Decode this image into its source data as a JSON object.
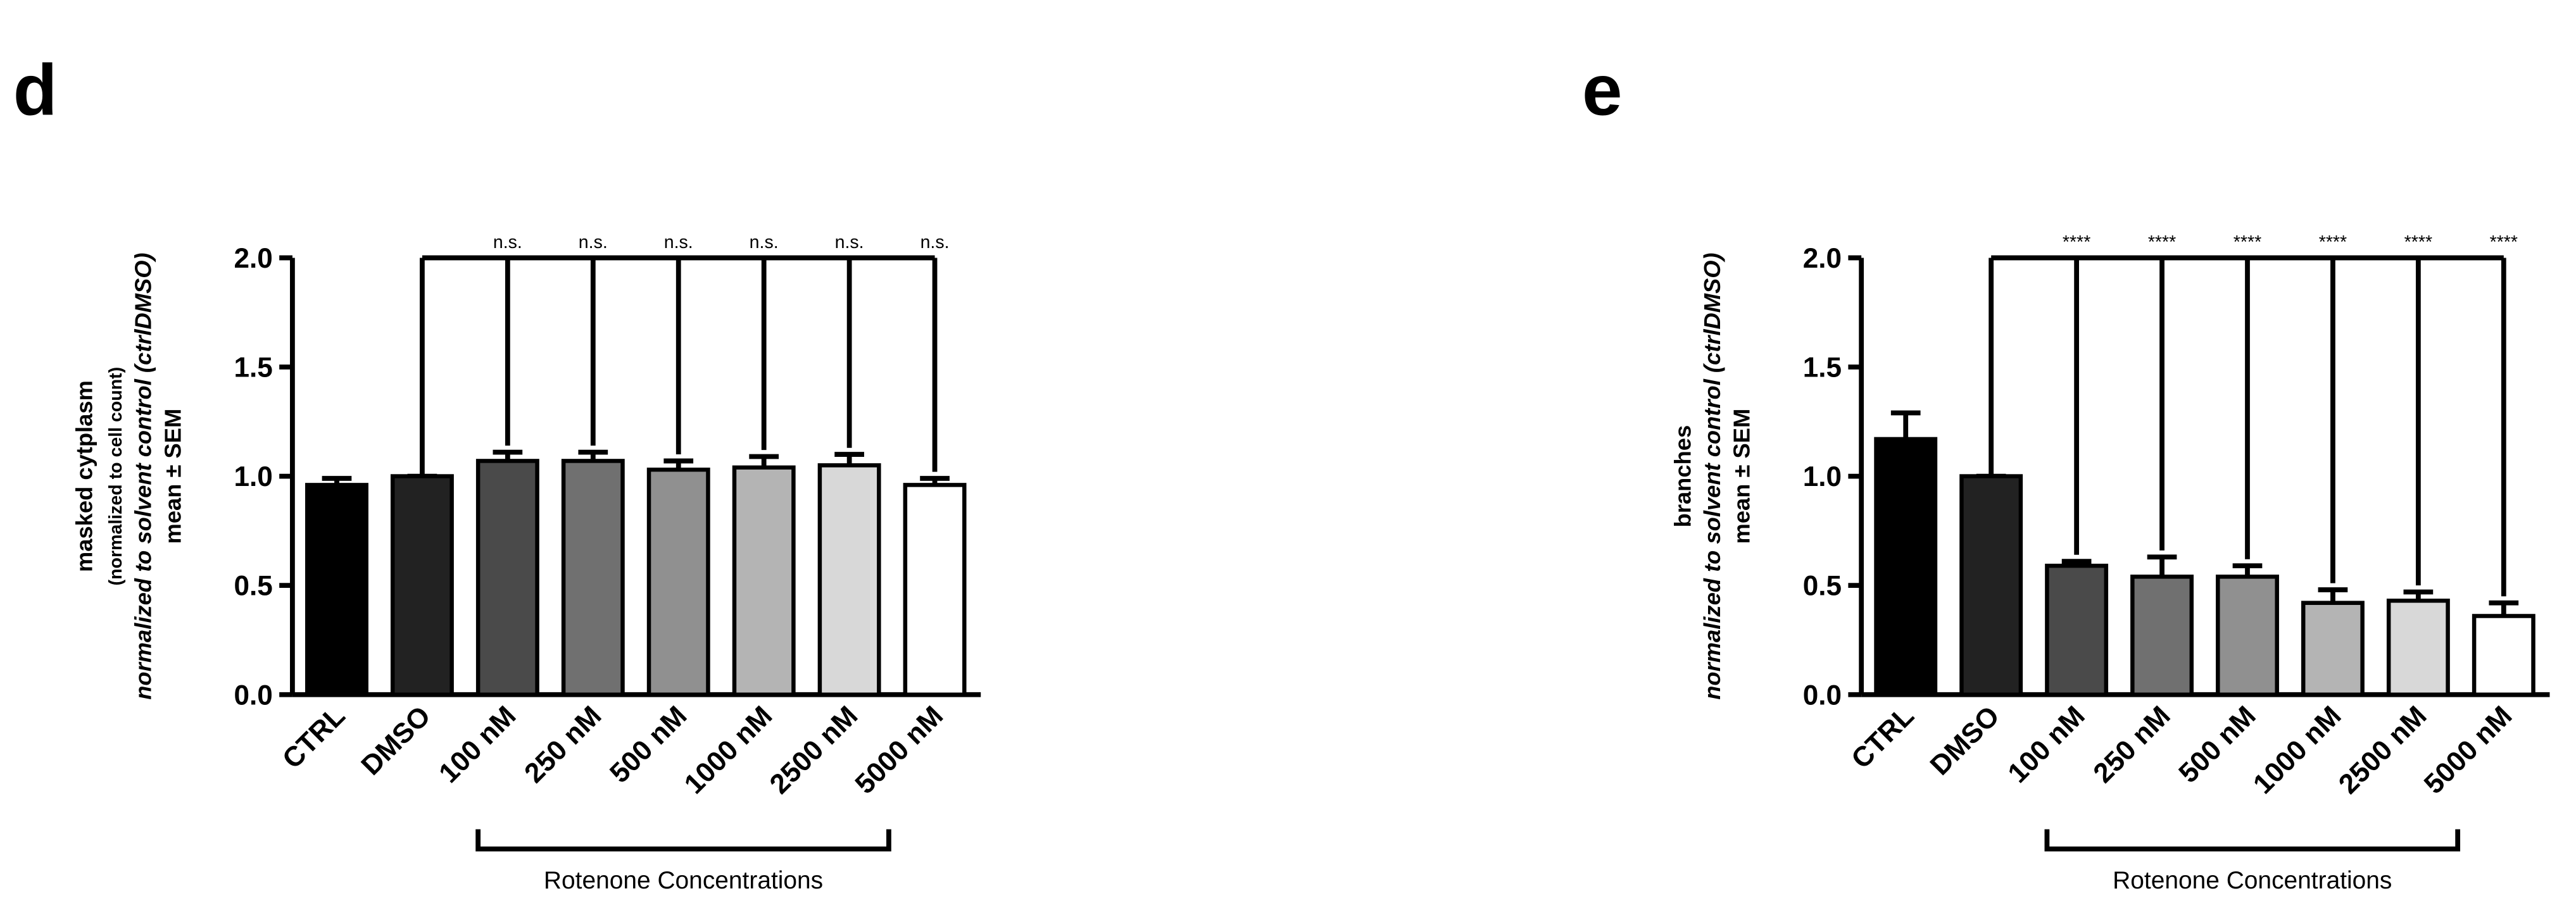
{
  "chart_data": [
    {
      "type": "bar",
      "panel_label": "d",
      "y_label_lines": [
        "masked cytplasm",
        "(normalized to cell count)",
        "normalized to solvent control (ctrlDMSO)",
        "mean ± SEM"
      ],
      "categories": [
        "CTRL",
        "DMSO",
        "100 nM",
        "250 nM",
        "500 nM",
        "1000 nM",
        "2500 nM",
        "5000 nM"
      ],
      "values": [
        0.96,
        1.0,
        1.07,
        1.07,
        1.03,
        1.04,
        1.05,
        0.96
      ],
      "errors": [
        0.03,
        0,
        0.04,
        0.04,
        0.04,
        0.05,
        0.05,
        0.03
      ],
      "colors": [
        "#000000",
        "#222222",
        "#4a4a4a",
        "#707070",
        "#909090",
        "#b4b4b4",
        "#d8d8d8",
        "#ffffff"
      ],
      "significance": [
        "n.s.",
        "n.s.",
        "n.s.",
        "n.s.",
        "n.s.",
        "n.s."
      ],
      "group_label": "Rotenone Concentrations",
      "ylim": [
        0,
        2
      ],
      "yticks": [
        {
          "value": 0,
          "label": "0.0"
        },
        {
          "value": 0.5,
          "label": "0.5"
        },
        {
          "value": 1,
          "label": "1.0"
        },
        {
          "value": 1.5,
          "label": "1.5"
        },
        {
          "value": 2,
          "label": "2.0"
        }
      ]
    },
    {
      "type": "bar",
      "panel_label": "e",
      "y_label_lines": [
        "branches",
        "normalized to solvent control (ctrlDMSO)",
        "mean ± SEM"
      ],
      "categories": [
        "CTRL",
        "DMSO",
        "100 nM",
        "250 nM",
        "500 nM",
        "1000 nM",
        "2500 nM",
        "5000 nM"
      ],
      "values": [
        1.17,
        1.0,
        0.59,
        0.54,
        0.54,
        0.42,
        0.43,
        0.36
      ],
      "errors": [
        0.12,
        0,
        0.02,
        0.09,
        0.05,
        0.06,
        0.04,
        0.06
      ],
      "colors": [
        "#000000",
        "#222222",
        "#4a4a4a",
        "#707070",
        "#909090",
        "#b4b4b4",
        "#d8d8d8",
        "#ffffff"
      ],
      "significance": [
        "****",
        "****",
        "****",
        "****",
        "****",
        "****"
      ],
      "group_label": "Rotenone Concentrations",
      "ylim": [
        0,
        2
      ],
      "yticks": [
        {
          "value": 0,
          "label": "0.0"
        },
        {
          "value": 0.5,
          "label": "0.5"
        },
        {
          "value": 1,
          "label": "1.0"
        },
        {
          "value": 1.5,
          "label": "1.5"
        },
        {
          "value": 2,
          "label": "2.0"
        }
      ]
    }
  ]
}
